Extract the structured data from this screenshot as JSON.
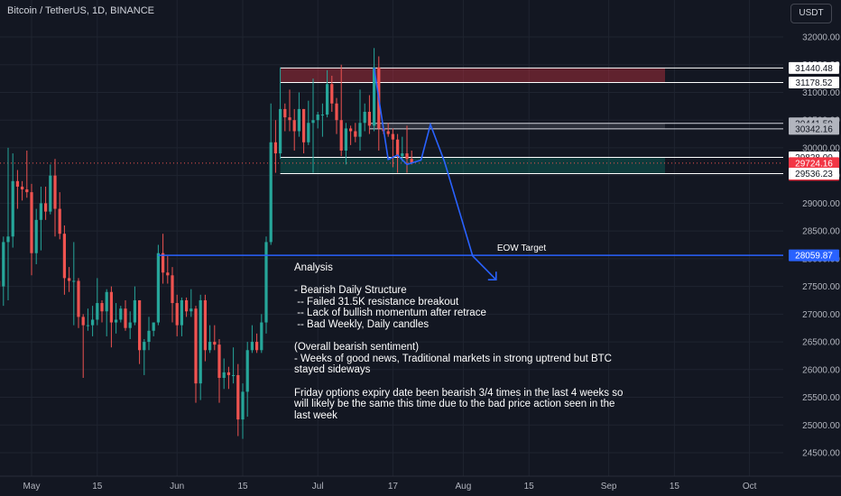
{
  "header": {
    "symbol": "Bitcoin / TetherUS, 1D, BINANCE",
    "currency": "USDT"
  },
  "colors": {
    "background": "#131722",
    "up": "#26a69a",
    "down": "#ef5350",
    "projection": "#2962ff",
    "resistance_zone": "#f23645",
    "support_zone": "#089981",
    "gray_zone": "#787b86",
    "grid": "#1f2430"
  },
  "annotations": {
    "eow_label": "EOW Target",
    "analysis_lines": [
      "Analysis",
      "",
      "- Bearish Daily Structure",
      " -- Failed 31.5K resistance breakout",
      " -- Lack of bullish momentum after retrace",
      " -- Bad Weekly, Daily candles",
      "",
      "(Overall bearish sentiment)",
      "- Weeks of good news, Traditional markets in strong uptrend but BTC",
      "stayed sideways",
      "",
      "Friday options expiry date been bearish 3/4 times in the last 4 weeks so",
      "will likely be the same this time due to the bad price action seen in the",
      "last week"
    ]
  },
  "chart_data": {
    "type": "candlestick",
    "title": "Bitcoin / TetherUS, 1D, BINANCE",
    "y_axis": {
      "ticks": [
        "32000.00",
        "31500.00",
        "31000.00",
        "30500.00",
        "30000.00",
        "29500.00",
        "29000.00",
        "28500.00",
        "28000.00",
        "27500.00",
        "27000.00",
        "26500.00",
        "26000.00",
        "25500.00",
        "25000.00",
        "24500.00"
      ],
      "ylim": [
        24300,
        32300
      ]
    },
    "x_axis": {
      "ticks": [
        "May",
        "15",
        "Jun",
        "15",
        "Jul",
        "17",
        "Aug",
        "15",
        "Sep",
        "15",
        "Oct"
      ]
    },
    "price_labels": [
      {
        "text": "31440.48",
        "value": 31440.48,
        "style": "white"
      },
      {
        "text": "31178.52",
        "value": 31178.52,
        "style": "white"
      },
      {
        "text": "30441.59",
        "value": 30441.59,
        "style": "gray"
      },
      {
        "text": "30342.16",
        "value": 30342.16,
        "style": "gray"
      },
      {
        "text": "29828.00",
        "value": 29828.0,
        "style": "white"
      },
      {
        "text": "29724.16",
        "value": 29724.16,
        "style": "current"
      },
      {
        "text": "07:20:34",
        "value": 29530,
        "style": "countdown"
      },
      {
        "text": "29536.23",
        "value": 29536.23,
        "style": "white"
      },
      {
        "text": "28059.87",
        "value": 28059.87,
        "style": "blue"
      }
    ],
    "zones": [
      {
        "name": "resistance",
        "top": 31440.48,
        "bottom": 31178.52,
        "start": "2023-06-23",
        "end": "2023-09-13"
      },
      {
        "name": "gray",
        "top": 30441.59,
        "bottom": 30342.16,
        "start": "2023-07-12",
        "end": "2023-09-13"
      },
      {
        "name": "support",
        "top": 29828.0,
        "bottom": 29536.23,
        "start": "2023-06-23",
        "end": "2023-09-13"
      }
    ],
    "eow_target": {
      "value": 28059.87,
      "start": "2023-05-28"
    },
    "projection": [
      {
        "date": "2023-07-13",
        "price": 31440
      },
      {
        "date": "2023-07-16",
        "price": 29790
      },
      {
        "date": "2023-07-18",
        "price": 29870
      },
      {
        "date": "2023-07-20",
        "price": 29700
      },
      {
        "date": "2023-07-23",
        "price": 29780
      },
      {
        "date": "2023-07-25",
        "price": 30420
      },
      {
        "date": "2023-07-28",
        "price": 29750
      },
      {
        "date": "2023-08-03",
        "price": 28050
      },
      {
        "date": "2023-08-08",
        "price": 27620
      }
    ],
    "ohlc": [
      [
        "2023-04-07",
        28000,
        28150,
        27700,
        27900
      ],
      [
        "2023-04-08",
        27900,
        28200,
        27750,
        28100
      ],
      [
        "2023-04-09",
        28100,
        28350,
        27900,
        28300
      ],
      [
        "2023-04-10",
        28300,
        29900,
        28150,
        29650
      ],
      [
        "2023-04-11",
        29650,
        30300,
        29400,
        30200
      ],
      [
        "2023-04-12",
        30200,
        30400,
        29700,
        29900
      ],
      [
        "2023-04-13",
        29900,
        30700,
        29800,
        30400
      ],
      [
        "2023-04-14",
        30400,
        31000,
        30000,
        30500
      ],
      [
        "2023-04-15",
        30500,
        30600,
        30250,
        30300
      ],
      [
        "2023-04-16",
        30300,
        30500,
        30100,
        30350
      ],
      [
        "2023-04-17",
        30350,
        30400,
        29300,
        29450
      ],
      [
        "2023-04-18",
        29450,
        30500,
        29100,
        30400
      ],
      [
        "2023-04-19",
        30400,
        30450,
        28600,
        28800
      ],
      [
        "2023-04-20",
        28800,
        29100,
        28000,
        28250
      ],
      [
        "2023-04-21",
        28250,
        28350,
        27100,
        27300
      ],
      [
        "2023-04-22",
        27300,
        27900,
        27100,
        27800
      ],
      [
        "2023-04-23",
        27800,
        27850,
        27350,
        27600
      ],
      [
        "2023-04-24",
        27600,
        28000,
        26950,
        27500
      ],
      [
        "2023-04-25",
        27500,
        28400,
        27150,
        28300
      ],
      [
        "2023-04-26",
        28300,
        30000,
        27250,
        28400
      ],
      [
        "2023-04-27",
        28400,
        29900,
        28200,
        29400
      ],
      [
        "2023-04-28",
        29400,
        29600,
        28900,
        29300
      ],
      [
        "2023-04-29",
        29300,
        29400,
        29050,
        29250
      ],
      [
        "2023-04-30",
        29250,
        29950,
        29100,
        29200
      ],
      [
        "2023-05-01",
        29200,
        29350,
        27700,
        28100
      ],
      [
        "2023-05-02",
        28100,
        28900,
        27900,
        28700
      ],
      [
        "2023-05-03",
        28700,
        29300,
        28150,
        29000
      ],
      [
        "2023-05-04",
        29000,
        29300,
        28700,
        28850
      ],
      [
        "2023-05-05",
        28850,
        29700,
        28800,
        29500
      ],
      [
        "2023-05-06",
        29500,
        29800,
        28400,
        28900
      ],
      [
        "2023-05-07",
        28900,
        29200,
        28350,
        28450
      ],
      [
        "2023-05-08",
        28450,
        28600,
        27350,
        27650
      ],
      [
        "2023-05-09",
        27650,
        27850,
        27400,
        27600
      ],
      [
        "2023-05-10",
        27600,
        28300,
        26800,
        27600
      ],
      [
        "2023-05-11",
        27600,
        27650,
        26750,
        26950
      ],
      [
        "2023-05-12",
        26950,
        27000,
        25850,
        26800
      ],
      [
        "2023-05-13",
        26800,
        27100,
        26700,
        26800
      ],
      [
        "2023-05-14",
        26800,
        27150,
        26600,
        26900
      ],
      [
        "2023-05-15",
        26900,
        27650,
        26800,
        27200
      ],
      [
        "2023-05-16",
        27200,
        27250,
        26850,
        27050
      ],
      [
        "2023-05-17",
        27050,
        27450,
        26600,
        27400
      ],
      [
        "2023-05-18",
        27400,
        27500,
        26400,
        26850
      ],
      [
        "2023-05-19",
        26850,
        27200,
        26650,
        26900
      ],
      [
        "2023-05-20",
        26900,
        27150,
        26850,
        27100
      ],
      [
        "2023-05-21",
        27100,
        27250,
        26700,
        26750
      ],
      [
        "2023-05-22",
        26750,
        27050,
        26550,
        26850
      ],
      [
        "2023-05-23",
        26850,
        27500,
        26800,
        27250
      ],
      [
        "2023-05-24",
        27250,
        27250,
        26100,
        26350
      ],
      [
        "2023-05-25",
        26350,
        26550,
        25900,
        26500
      ],
      [
        "2023-05-26",
        26500,
        26950,
        26350,
        26700
      ],
      [
        "2023-05-27",
        26700,
        26850,
        26600,
        26850
      ],
      [
        "2023-05-28",
        26850,
        28250,
        26800,
        28100
      ],
      [
        "2023-05-29",
        28100,
        28450,
        27550,
        27750
      ],
      [
        "2023-05-30",
        27750,
        28050,
        27550,
        27700
      ],
      [
        "2023-05-31",
        27700,
        27850,
        26850,
        27200
      ],
      [
        "2023-06-01",
        27200,
        27350,
        26600,
        26800
      ],
      [
        "2023-06-02",
        26800,
        27300,
        26600,
        27250
      ],
      [
        "2023-06-03",
        27250,
        27300,
        26950,
        27050
      ],
      [
        "2023-06-04",
        27050,
        27450,
        26950,
        27100
      ],
      [
        "2023-06-05",
        27100,
        27150,
        25400,
        25750
      ],
      [
        "2023-06-06",
        25750,
        27350,
        25450,
        27250
      ],
      [
        "2023-06-07",
        27250,
        27350,
        26150,
        26350
      ],
      [
        "2023-06-08",
        26350,
        26800,
        26300,
        26500
      ],
      [
        "2023-06-09",
        26500,
        26800,
        26350,
        26450
      ],
      [
        "2023-06-10",
        26450,
        26550,
        25400,
        25850
      ],
      [
        "2023-06-11",
        25850,
        26200,
        25650,
        25950
      ],
      [
        "2023-06-12",
        25950,
        26050,
        25650,
        25900
      ],
      [
        "2023-06-13",
        25900,
        26400,
        25750,
        25900
      ],
      [
        "2023-06-14",
        25900,
        26100,
        24800,
        25100
      ],
      [
        "2023-06-15",
        25100,
        25750,
        24750,
        25600
      ],
      [
        "2023-06-16",
        25600,
        26500,
        25150,
        26350
      ],
      [
        "2023-06-17",
        26350,
        26800,
        26300,
        26500
      ],
      [
        "2023-06-18",
        26500,
        26650,
        26300,
        26350
      ],
      [
        "2023-06-19",
        26350,
        27000,
        26300,
        26850
      ],
      [
        "2023-06-20",
        26850,
        28400,
        26650,
        28300
      ],
      [
        "2023-06-21",
        28300,
        30800,
        28250,
        30100
      ],
      [
        "2023-06-22",
        30100,
        30500,
        29550,
        29900
      ],
      [
        "2023-06-23",
        29900,
        31450,
        29800,
        30700
      ],
      [
        "2023-06-24",
        30700,
        30800,
        30300,
        30550
      ],
      [
        "2023-06-25",
        30550,
        31050,
        30300,
        30500
      ],
      [
        "2023-06-26",
        30500,
        30700,
        29950,
        30300
      ],
      [
        "2023-06-27",
        30300,
        31000,
        30200,
        30700
      ],
      [
        "2023-06-28",
        30700,
        30700,
        29900,
        30100
      ],
      [
        "2023-06-29",
        30100,
        30850,
        30050,
        30450
      ],
      [
        "2023-06-30",
        30450,
        31250,
        29550,
        30500
      ],
      [
        "2023-07-01",
        30500,
        30650,
        30350,
        30600
      ],
      [
        "2023-07-02",
        30600,
        30800,
        30200,
        30600
      ],
      [
        "2023-07-03",
        30600,
        31400,
        30550,
        31150
      ],
      [
        "2023-07-04",
        31150,
        31300,
        30650,
        30800
      ],
      [
        "2023-07-05",
        30800,
        30900,
        30250,
        30500
      ],
      [
        "2023-07-06",
        30500,
        31500,
        29850,
        29950
      ],
      [
        "2023-07-07",
        29950,
        30450,
        29700,
        30350
      ],
      [
        "2023-07-08",
        30350,
        30400,
        30050,
        30300
      ],
      [
        "2023-07-09",
        30300,
        30450,
        30100,
        30200
      ],
      [
        "2023-07-10",
        30200,
        31050,
        29950,
        30450
      ],
      [
        "2023-07-11",
        30450,
        30800,
        30300,
        30650
      ],
      [
        "2023-07-12",
        30650,
        30950,
        30250,
        30400
      ],
      [
        "2023-07-13",
        30400,
        31800,
        30300,
        31450
      ],
      [
        "2023-07-14",
        31450,
        31650,
        29950,
        30350
      ],
      [
        "2023-07-15",
        30350,
        30400,
        30250,
        30300
      ],
      [
        "2023-07-16",
        30300,
        30450,
        30200,
        30250
      ],
      [
        "2023-07-17",
        30250,
        30350,
        29650,
        30150
      ],
      [
        "2023-07-18",
        30150,
        30250,
        29550,
        29850
      ],
      [
        "2023-07-19",
        29850,
        30200,
        29750,
        29900
      ],
      [
        "2023-07-20",
        29900,
        30400,
        29550,
        29800
      ],
      [
        "2023-07-21",
        29800,
        29950,
        29700,
        29724.16
      ]
    ]
  }
}
